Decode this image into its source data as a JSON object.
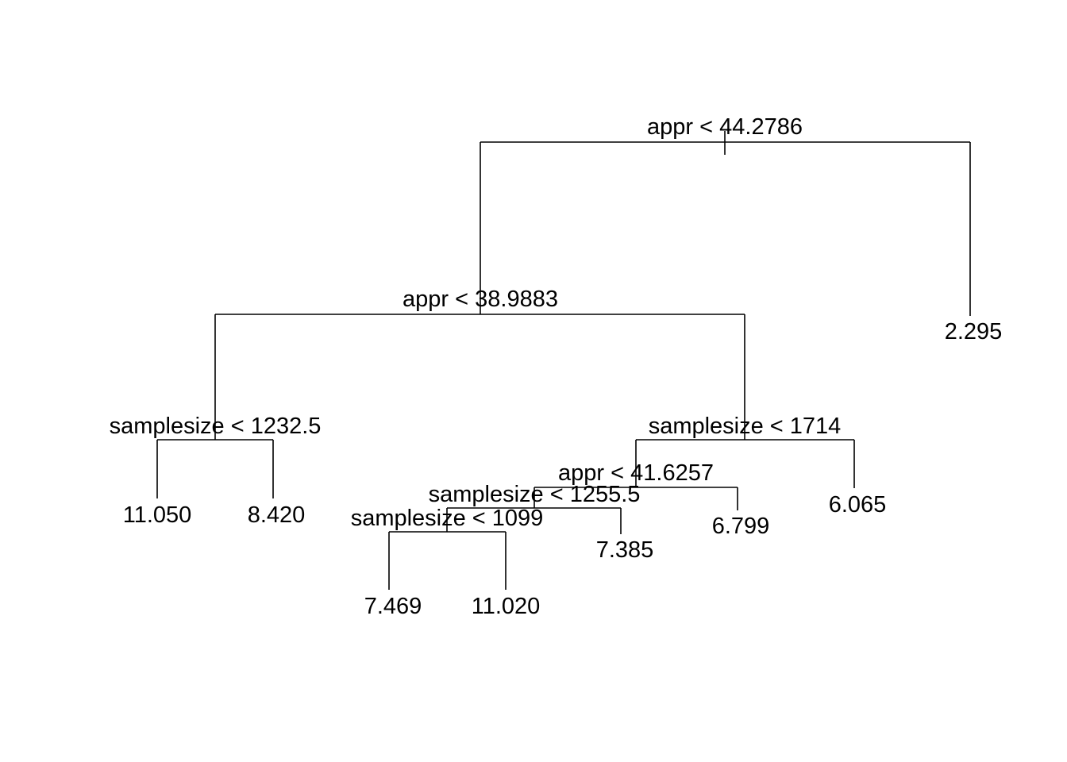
{
  "tree": {
    "line_color": "#000000",
    "background": "#ffffff",
    "root": "n1",
    "nodes": {
      "n1": {
        "type": "split",
        "label": "appr < 44.2786",
        "left": "n2",
        "right": "l_2295"
      },
      "n2": {
        "type": "split",
        "label": "appr < 38.9883",
        "left": "n3",
        "right": "n4"
      },
      "n3": {
        "type": "split",
        "label": "samplesize < 1232.5",
        "left": "l_11050",
        "right": "l_8420"
      },
      "n4": {
        "type": "split",
        "label": "samplesize < 1714",
        "left": "n5",
        "right": "l_6065"
      },
      "n5": {
        "type": "split",
        "label": "appr < 41.6257",
        "left": "n6",
        "right": "l_6799"
      },
      "n6": {
        "type": "split",
        "label": "samplesize < 1255.5",
        "left": "n7",
        "right": "l_7385"
      },
      "n7": {
        "type": "split",
        "label": "samplesize < 1099",
        "left": "l_7469",
        "right": "l_11020"
      },
      "l_2295": {
        "type": "leaf",
        "label": "2.295"
      },
      "l_11050": {
        "type": "leaf",
        "label": "11.050"
      },
      "l_8420": {
        "type": "leaf",
        "label": "8.420"
      },
      "l_6065": {
        "type": "leaf",
        "label": "6.065"
      },
      "l_6799": {
        "type": "leaf",
        "label": "6.799"
      },
      "l_7385": {
        "type": "leaf",
        "label": "7.385"
      },
      "l_7469": {
        "type": "leaf",
        "label": "7.469"
      },
      "l_11020": {
        "type": "leaf",
        "label": "11.020"
      }
    }
  }
}
